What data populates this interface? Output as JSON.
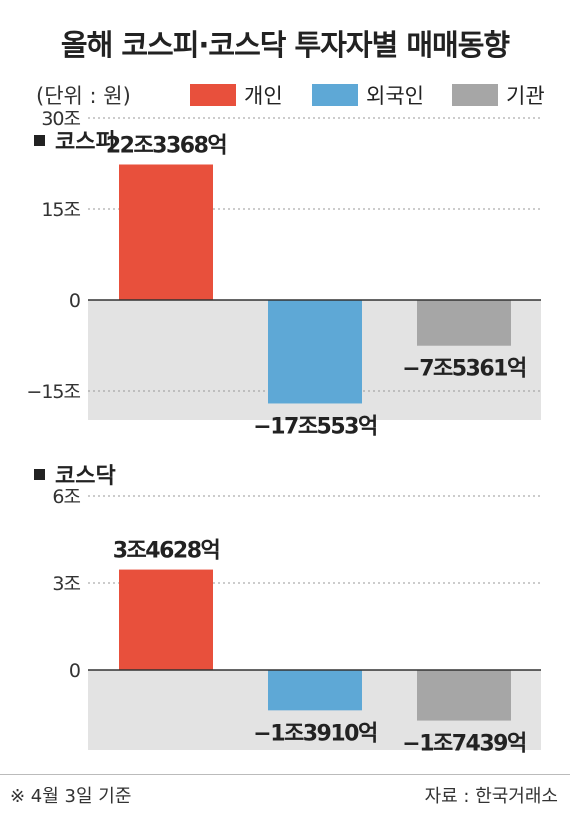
{
  "title": "올해 코스피·코스닥 투자자별 매매동향",
  "unit_label": "(단위 : 원)",
  "legend": [
    {
      "label": "개인",
      "color": "#e8503c"
    },
    {
      "label": "외국인",
      "color": "#5ea8d6"
    },
    {
      "label": "기관",
      "color": "#a6a6a6"
    }
  ],
  "colors": {
    "negative_area": "#e3e3e3",
    "gridline": "#999999"
  },
  "chart_data": [
    {
      "type": "bar",
      "title": "코스피",
      "categories": [
        "개인",
        "외국인",
        "기관"
      ],
      "values": [
        223368,
        -170553,
        -75361
      ],
      "value_unit": "억원",
      "value_labels": [
        "22조3368억",
        "−17조553억",
        "−7조5361억"
      ],
      "yticks": [
        {
          "value": 300000,
          "label": "30조"
        },
        {
          "value": 150000,
          "label": "15조"
        },
        {
          "value": 0,
          "label": "0"
        },
        {
          "value": -150000,
          "label": "−15조"
        }
      ],
      "ylim": [
        -300000,
        300000
      ]
    },
    {
      "type": "bar",
      "title": "코스닥",
      "categories": [
        "개인",
        "외국인",
        "기관"
      ],
      "values": [
        34628,
        -13910,
        -17439
      ],
      "value_unit": "억원",
      "value_labels": [
        "3조4628억",
        "−1조3910억",
        "−1조7439억"
      ],
      "yticks": [
        {
          "value": 60000,
          "label": "6조"
        },
        {
          "value": 30000,
          "label": "3조"
        },
        {
          "value": 0,
          "label": "0"
        }
      ],
      "ylim": [
        -30000,
        60000
      ]
    }
  ],
  "footer_note": "※ 4월 3일 기준",
  "source": "자료 : 한국거래소"
}
